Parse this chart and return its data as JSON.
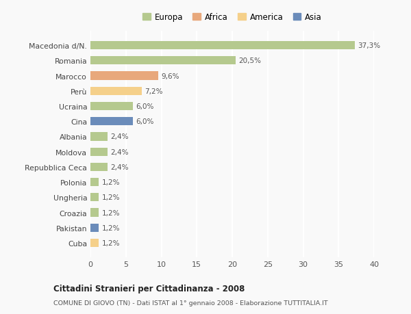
{
  "categories": [
    "Macedonia d/N.",
    "Romania",
    "Marocco",
    "Perù",
    "Ucraina",
    "Cina",
    "Albania",
    "Moldova",
    "Repubblica Ceca",
    "Polonia",
    "Ungheria",
    "Croazia",
    "Pakistan",
    "Cuba"
  ],
  "values": [
    37.3,
    20.5,
    9.6,
    7.2,
    6.0,
    6.0,
    2.4,
    2.4,
    2.4,
    1.2,
    1.2,
    1.2,
    1.2,
    1.2
  ],
  "labels": [
    "37,3%",
    "20,5%",
    "9,6%",
    "7,2%",
    "6,0%",
    "6,0%",
    "2,4%",
    "2,4%",
    "2,4%",
    "1,2%",
    "1,2%",
    "1,2%",
    "1,2%",
    "1,2%"
  ],
  "colors": [
    "#b5c98e",
    "#b5c98e",
    "#e8a87c",
    "#f5d08a",
    "#b5c98e",
    "#6b8cba",
    "#b5c98e",
    "#b5c98e",
    "#b5c98e",
    "#b5c98e",
    "#b5c98e",
    "#b5c98e",
    "#6b8cba",
    "#f5d08a"
  ],
  "legend_labels": [
    "Europa",
    "Africa",
    "America",
    "Asia"
  ],
  "legend_colors": [
    "#b5c98e",
    "#e8a87c",
    "#f5d08a",
    "#6b8cba"
  ],
  "title": "Cittadini Stranieri per Cittadinanza - 2008",
  "subtitle": "COMUNE DI GIOVO (TN) - Dati ISTAT al 1° gennaio 2008 - Elaborazione TUTTITALIA.IT",
  "xlim": [
    0,
    40
  ],
  "xticks": [
    0,
    5,
    10,
    15,
    20,
    25,
    30,
    35,
    40
  ],
  "background_color": "#f9f9f9",
  "grid_color": "#ffffff"
}
